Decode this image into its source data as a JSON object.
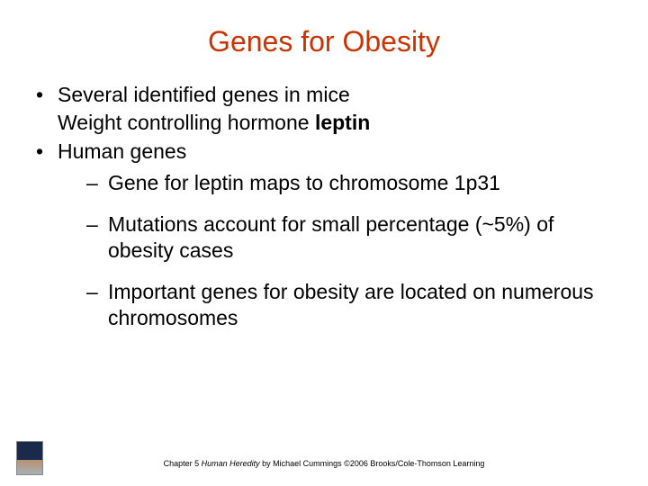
{
  "colors": {
    "title": "#cc3300",
    "body": "#000000",
    "background": "#ffffff"
  },
  "title": "Genes for Obesity",
  "bullets": {
    "b1": "Several identified genes in mice",
    "b1_cont_pre": "Weight controlling hormone ",
    "b1_cont_bold": "leptin",
    "b2": "Human genes",
    "s1": "Gene for leptin maps to chromosome 1p31",
    "s2": "Mutations account for small percentage (~5%) of obesity cases",
    "s3": "Important genes for obesity are located on numerous chromosomes"
  },
  "footer": {
    "pre": "Chapter 5 ",
    "ital": "Human Heredity",
    "post": " by Michael Cummings ©2006 Brooks/Cole-Thomson Learning"
  }
}
